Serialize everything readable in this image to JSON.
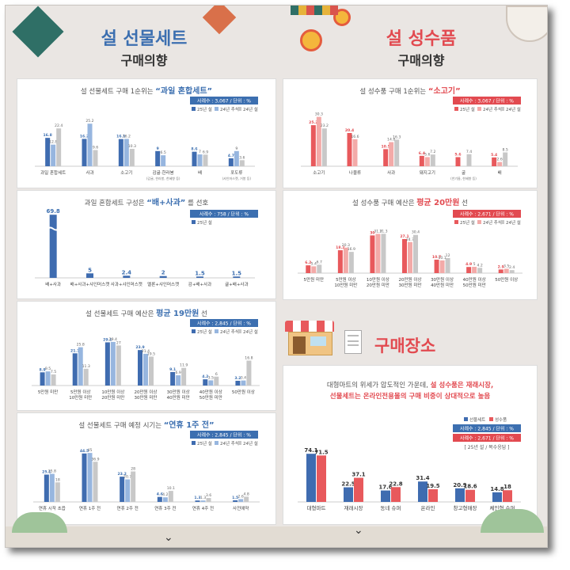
{
  "left_header": {
    "title_a": "설 선물세트",
    "title_b": "구매의향"
  },
  "right_header": {
    "title_a": "설 성수품",
    "title_b": "구매의향"
  },
  "place_header": {
    "title": "구매장소"
  },
  "place_desc": {
    "line1_plain": "대형마트의 위세가 압도적인 가운데,",
    "line1_hl": "설 성수품은 재래시장,",
    "line2_hl": "선물세트는 온라인전용몰의 구매 비중이 상대적으로 높음"
  },
  "colors": {
    "blue_dark": "#3f6cb0",
    "blue_light": "#97b6df",
    "gray": "#c8c8c8",
    "red_dark": "#e8595c",
    "red_light": "#f3aaa8",
    "accent_red": "#e24a50",
    "accent_blue": "#3c6fb0"
  },
  "chart_data": [
    {
      "id": "c1",
      "type": "bar",
      "title_pre": "설 선물세트 구매 1순위는",
      "title_hl": "“과일 혼합세트”",
      "note": "사례수 : 3,067 / 단위 : %",
      "categories": [
        "과일 혼합세트",
        "사과",
        "소고기",
        "감귤·한라봉",
        "배",
        "포도류"
      ],
      "sublabels": [
        "",
        "",
        "",
        "(감귤, 한라봉, 천혜향 등)",
        "",
        "(샤인머스켓, 거봉 등)"
      ],
      "series": [
        {
          "name": "25년 설",
          "values": [
            16.8,
            16.2,
            16.1,
            9.0,
            8.6,
            4.7
          ]
        },
        {
          "name": "24년 추석",
          "values": [
            12.8,
            25.2,
            16.2,
            6.5,
            7.0,
            9.0
          ]
        },
        {
          "name": "24년 설",
          "values": [
            22.4,
            9.6,
            10.3,
            null,
            6.9,
            3.6
          ]
        }
      ],
      "ylim": [
        0,
        30
      ]
    },
    {
      "id": "c2",
      "type": "bar",
      "title_pre": "과일 혼합세트 구성은",
      "title_hl": "“배+사과”",
      "title_post": "를 선호",
      "note": "사례수 : 758 / 단위 : %",
      "categories": [
        "배+사과",
        "배+사과+샤인머스캣",
        "사과+샤인머스캣",
        "멜론+샤인머스캣",
        "감+배+사과",
        "귤+배+사과"
      ],
      "series": [
        {
          "name": "25년 설",
          "values": [
            69.8,
            5.0,
            2.4,
            2.0,
            1.5,
            1.5
          ]
        }
      ],
      "ylim": [
        0,
        70
      ],
      "axis_break": true
    },
    {
      "id": "c3",
      "type": "bar",
      "title_pre": "설 선물세트 구매 예산은",
      "title_hl": "평균 19만원",
      "title_post": "선",
      "note": "사례수 : 2,845 / 단위 : %",
      "categories": [
        "5만원 미만",
        "5만원 이상|10만원 미만",
        "10만원 이상|20만원 미만",
        "20만원 이상|30만원 미만",
        "30만원 이상|40만원 미만",
        "40만원 이상|50만원 미만",
        "50만원 이상"
      ],
      "series": [
        {
          "name": "25년 설",
          "values": [
            8.9,
            21.7,
            29.1,
            23.9,
            9.1,
            4.2,
            3.2
          ]
        },
        {
          "name": "24년 추석",
          "values": [
            9.5,
            25.8,
            29.4,
            21.4,
            6.9,
            3.5,
            3.4
          ]
        },
        {
          "name": "24년 설",
          "values": [
            7.5,
            11.3,
            27.0,
            19.5,
            11.9,
            6.0,
            16.8
          ]
        }
      ],
      "ylim": [
        0,
        32
      ]
    },
    {
      "id": "c4",
      "type": "bar",
      "title_pre": "설 선물세트 구매 예정 시기는",
      "title_hl": "“연휴 1주 전”",
      "note": "사례수 : 2,845 / 단위 : %",
      "categories": [
        "연휴 시작 초읍",
        "연휴 1주 전",
        "연휴 2주 전",
        "연휴 3주 전",
        "연휴 4주 전",
        "사전예약"
      ],
      "series": [
        {
          "name": "25년 설",
          "values": [
            25.1,
            44.5,
            23.2,
            4.6,
            1.3,
            1.5
          ]
        },
        {
          "name": "24년 추석",
          "values": [
            25.8,
            45.0,
            20.7,
            4.2,
            1.3,
            2.6
          ]
        },
        {
          "name": "24년 설",
          "values": [
            18.0,
            36.9,
            28.0,
            10.1,
            3.6,
            4.8
          ]
        }
      ],
      "ylim": [
        0,
        48
      ]
    },
    {
      "id": "c5",
      "type": "bar",
      "title_pre": "설 성수품 구매 1순위는",
      "title_hl": "“소고기”",
      "note": "사례수 : 3,067 / 단위 : %",
      "categories": [
        "소고기",
        "나물류",
        "사과",
        "돼지고기",
        "굴",
        "배"
      ],
      "sublabels": [
        "",
        "",
        "",
        "",
        "(찬기름, 한혜향 등)",
        ""
      ],
      "series": [
        {
          "name": "25년 설",
          "values": [
            25.2,
            20.4,
            10.5,
            6.4,
            5.6,
            5.4
          ]
        },
        {
          "name": "24년 추석",
          "values": [
            30.3,
            16.6,
            14.8,
            5.6,
            null,
            2.6
          ]
        },
        {
          "name": "24년 설",
          "values": [
            23.2,
            null,
            16.3,
            7.2,
            7.4,
            8.5
          ]
        }
      ],
      "ylim": [
        0,
        34
      ]
    },
    {
      "id": "c6",
      "type": "bar",
      "title_pre": "설 성수품 구매 예산은",
      "title_hl": "평균 20만원",
      "title_post": "선",
      "note": "사례수 : 2,671 / 단위 : %",
      "categories": [
        "5만원 미만",
        "5만원 이상|10만원 미만",
        "10만원 이상|20만원 미만",
        "20만원 이상|30만원 미만",
        "30만원 이상|40만원 미만",
        "40만원 이상|50만원 미만",
        "50만원 이상"
      ],
      "series": [
        {
          "name": "25년 설",
          "values": [
            6.2,
            18.2,
            30.0,
            27.1,
            10.7,
            4.9,
            2.9
          ]
        },
        {
          "name": "24년 추석",
          "values": [
            5.4,
            20.3,
            31.2,
            24.7,
            10.1,
            5.0,
            3.5
          ]
        },
        {
          "name": "24년 설",
          "values": [
            6.7,
            16.9,
            31.3,
            30.4,
            12.0,
            4.2,
            2.4
          ]
        }
      ],
      "ylim": [
        0,
        34
      ]
    },
    {
      "id": "c7",
      "type": "bar",
      "note": "사례수 : 2,845 / 단위 : %",
      "note2": "사례수 : 2,671 / 단위 : %",
      "note3": "[ 25년 설 / 복수응답 ]",
      "categories": [
        "대형마트",
        "재래시장",
        "동네 슈퍼",
        "온라인",
        "창고형매장",
        "체인형 슈퍼"
      ],
      "series": [
        {
          "name": "선물세트",
          "values": [
            74.1,
            22.5,
            17.6,
            31.4,
            20.9,
            14.8
          ]
        },
        {
          "name": "성수품",
          "values": [
            71.5,
            37.1,
            22.8,
            19.5,
            18.6,
            18.0
          ]
        }
      ],
      "ylim": [
        0,
        78
      ]
    }
  ]
}
